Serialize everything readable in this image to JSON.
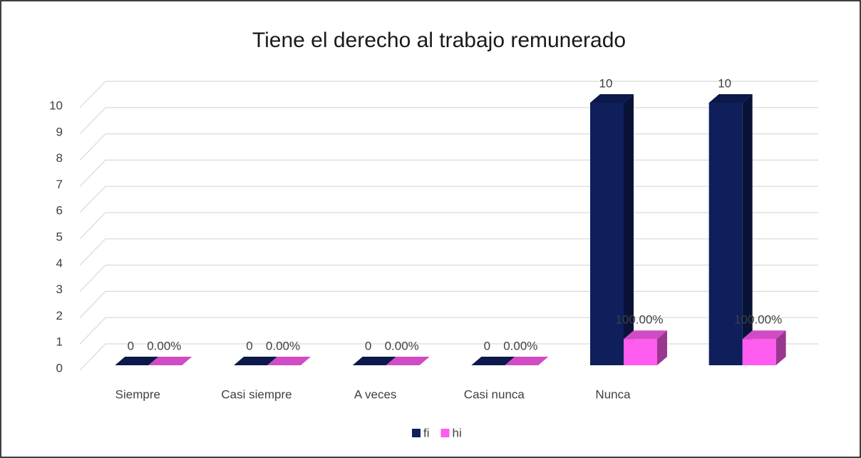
{
  "chart_data": {
    "type": "bar3d",
    "title": "Tiene el derecho al trabajo remunerado",
    "categories": [
      "Siempre",
      "Casi siempre",
      "A veces",
      "Casi nunca",
      "Nunca",
      null
    ],
    "series": [
      {
        "name": "fi",
        "color": "#0e1f5b",
        "values": [
          0,
          0,
          0,
          0,
          10,
          10
        ]
      },
      {
        "name": "hi",
        "color": "#ff5cf0",
        "values": [
          0,
          0,
          0,
          0,
          1,
          1
        ],
        "value_labels": [
          "0.00%",
          "0.00%",
          "0.00%",
          "0.00%",
          "100.00%",
          "100.00%"
        ]
      }
    ],
    "ylim": [
      0,
      10
    ],
    "yticks": [
      0,
      1,
      2,
      3,
      4,
      5,
      6,
      7,
      8,
      9,
      10
    ],
    "grid": true,
    "legend": "bottom"
  }
}
